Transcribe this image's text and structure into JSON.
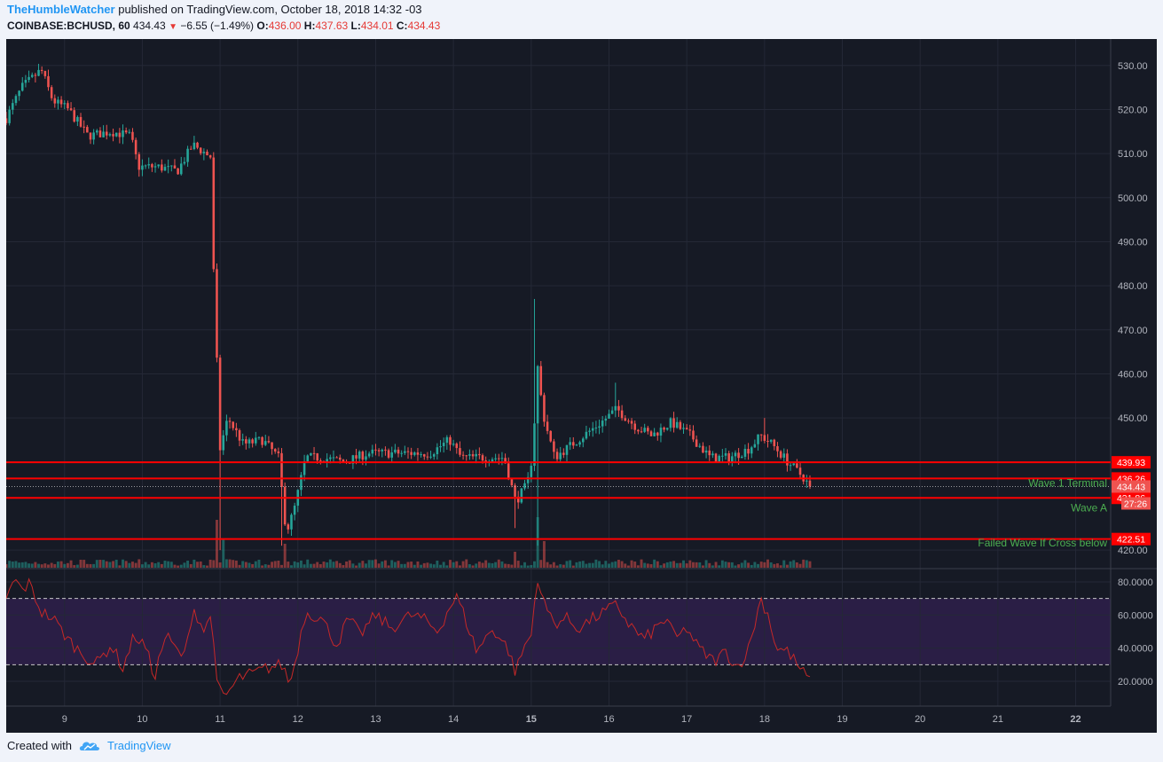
{
  "header": {
    "author": "TheHumbleWatcher",
    "published": "published on TradingView.com, October 18, 2018 14:32 -03",
    "symbol": "COINBASE:BCHUSD, 60",
    "last": "434.43",
    "change": "−6.55 (−1.49%)",
    "o_label": "O:",
    "o": "436.00",
    "h_label": "H:",
    "h": "437.63",
    "l_label": "L:",
    "l": "434.01",
    "c_label": "C:",
    "c": "434.43",
    "down_glyph": "▼"
  },
  "footer": {
    "created_with": "Created with",
    "brand": "TradingView"
  },
  "colors": {
    "background": "#161a25",
    "up": "#26a69a",
    "down": "#ef5350",
    "level_line": "#ff0000",
    "annotation": "#4caf50",
    "rsi": "#c62828",
    "rsi_band": "#2a1e45"
  },
  "chart_data": {
    "type": "candlestick",
    "x_ticks": [
      "9",
      "10",
      "11",
      "12",
      "13",
      "14",
      "15",
      "16",
      "17",
      "18",
      "19",
      "20",
      "21",
      "22"
    ],
    "y_ticks": [
      "530.00",
      "520.00",
      "510.00",
      "500.00",
      "490.00",
      "480.00",
      "470.00",
      "460.00",
      "450.00",
      "440.00",
      "420.00"
    ],
    "ylim": [
      416,
      536
    ],
    "xlim": [
      8.25,
      22.45
    ],
    "price_anchors": [
      [
        8.25,
        518
      ],
      [
        8.45,
        525
      ],
      [
        8.7,
        529
      ],
      [
        8.85,
        522
      ],
      [
        9.05,
        520
      ],
      [
        9.3,
        514
      ],
      [
        9.6,
        515
      ],
      [
        9.85,
        514
      ],
      [
        9.95,
        507
      ],
      [
        10.2,
        507
      ],
      [
        10.45,
        506
      ],
      [
        10.65,
        512
      ],
      [
        10.9,
        509
      ],
      [
        10.92,
        478
      ],
      [
        10.96,
        462
      ],
      [
        11.0,
        443
      ],
      [
        11.1,
        450
      ],
      [
        11.3,
        444
      ],
      [
        11.55,
        445
      ],
      [
        11.75,
        441
      ],
      [
        11.85,
        424
      ],
      [
        11.95,
        429
      ],
      [
        12.1,
        441
      ],
      [
        12.3,
        441
      ],
      [
        12.6,
        440
      ],
      [
        12.9,
        442
      ],
      [
        13.3,
        442
      ],
      [
        13.7,
        442
      ],
      [
        13.95,
        445
      ],
      [
        14.1,
        441
      ],
      [
        14.4,
        441
      ],
      [
        14.65,
        441
      ],
      [
        14.8,
        431
      ],
      [
        14.95,
        435
      ],
      [
        15.02,
        442
      ],
      [
        15.08,
        462
      ],
      [
        15.15,
        451
      ],
      [
        15.3,
        441
      ],
      [
        15.6,
        445
      ],
      [
        15.9,
        449
      ],
      [
        16.1,
        452
      ],
      [
        16.35,
        448
      ],
      [
        16.55,
        446
      ],
      [
        16.8,
        449
      ],
      [
        17.05,
        446
      ],
      [
        17.3,
        441
      ],
      [
        17.55,
        441
      ],
      [
        17.8,
        443
      ],
      [
        17.95,
        446
      ],
      [
        18.1,
        444
      ],
      [
        18.3,
        440
      ],
      [
        18.5,
        436.5
      ],
      [
        18.58,
        434.43
      ]
    ],
    "spikes": [
      [
        11.0,
        420
      ],
      [
        15.05,
        477
      ],
      [
        15.1,
        421
      ],
      [
        11.8,
        421
      ],
      [
        14.8,
        425
      ],
      [
        16.1,
        458
      ],
      [
        18.0,
        450
      ]
    ],
    "volume_spikes": [
      [
        10.95,
        0.9
      ],
      [
        11.05,
        0.55
      ],
      [
        11.85,
        0.45
      ],
      [
        15.1,
        0.95
      ],
      [
        15.15,
        0.5
      ],
      [
        14.8,
        0.3
      ]
    ],
    "horizontal_levels": [
      {
        "value": 439.93,
        "label": "439.93"
      },
      {
        "value": 436.26,
        "label": "436.26"
      },
      {
        "value": 431.86,
        "label": "431.86"
      },
      {
        "value": 422.51,
        "label": "422.51"
      }
    ],
    "last_price": {
      "value": 434.43,
      "label": "434.43",
      "countdown": "27:26"
    },
    "annotations": [
      {
        "text": "Wave 1 Terminal",
        "value": 434.4
      },
      {
        "text": "Wave A",
        "value": 428.8
      },
      {
        "text": "Failed Wave If Cross below",
        "value": 420.8
      }
    ],
    "rsi": {
      "y_ticks": [
        "80.0000",
        "60.0000",
        "40.0000",
        "20.0000"
      ],
      "ylim": [
        5,
        88
      ],
      "band": [
        30,
        70
      ],
      "anchors": [
        [
          8.25,
          68
        ],
        [
          8.35,
          82
        ],
        [
          8.45,
          75
        ],
        [
          8.55,
          79
        ],
        [
          8.7,
          62
        ],
        [
          8.85,
          58
        ],
        [
          9.05,
          45
        ],
        [
          9.2,
          38
        ],
        [
          9.4,
          30
        ],
        [
          9.6,
          42
        ],
        [
          9.75,
          28
        ],
        [
          9.9,
          48
        ],
        [
          10.05,
          40
        ],
        [
          10.15,
          22
        ],
        [
          10.3,
          48
        ],
        [
          10.45,
          38
        ],
        [
          10.55,
          35
        ],
        [
          10.65,
          65
        ],
        [
          10.8,
          50
        ],
        [
          10.9,
          62
        ],
        [
          10.95,
          18
        ],
        [
          11.05,
          10
        ],
        [
          11.25,
          22
        ],
        [
          11.45,
          25
        ],
        [
          11.6,
          28
        ],
        [
          11.8,
          30
        ],
        [
          11.9,
          18
        ],
        [
          12.0,
          40
        ],
        [
          12.1,
          62
        ],
        [
          12.3,
          58
        ],
        [
          12.5,
          42
        ],
        [
          12.65,
          58
        ],
        [
          12.8,
          48
        ],
        [
          13.0,
          60
        ],
        [
          13.2,
          52
        ],
        [
          13.45,
          60
        ],
        [
          13.6,
          58
        ],
        [
          13.8,
          50
        ],
        [
          13.95,
          65
        ],
        [
          14.05,
          71
        ],
        [
          14.15,
          58
        ],
        [
          14.3,
          38
        ],
        [
          14.5,
          52
        ],
        [
          14.7,
          40
        ],
        [
          14.8,
          25
        ],
        [
          14.9,
          40
        ],
        [
          15.0,
          48
        ],
        [
          15.08,
          84
        ],
        [
          15.15,
          68
        ],
        [
          15.3,
          55
        ],
        [
          15.45,
          58
        ],
        [
          15.6,
          52
        ],
        [
          15.8,
          58
        ],
        [
          15.95,
          62
        ],
        [
          16.1,
          66
        ],
        [
          16.25,
          55
        ],
        [
          16.45,
          45
        ],
        [
          16.6,
          52
        ],
        [
          16.75,
          58
        ],
        [
          16.85,
          45
        ],
        [
          17.0,
          52
        ],
        [
          17.15,
          40
        ],
        [
          17.35,
          32
        ],
        [
          17.5,
          38
        ],
        [
          17.65,
          28
        ],
        [
          17.8,
          40
        ],
        [
          17.95,
          70
        ],
        [
          18.05,
          60
        ],
        [
          18.15,
          40
        ],
        [
          18.3,
          38
        ],
        [
          18.45,
          28
        ],
        [
          18.58,
          20
        ]
      ]
    }
  }
}
